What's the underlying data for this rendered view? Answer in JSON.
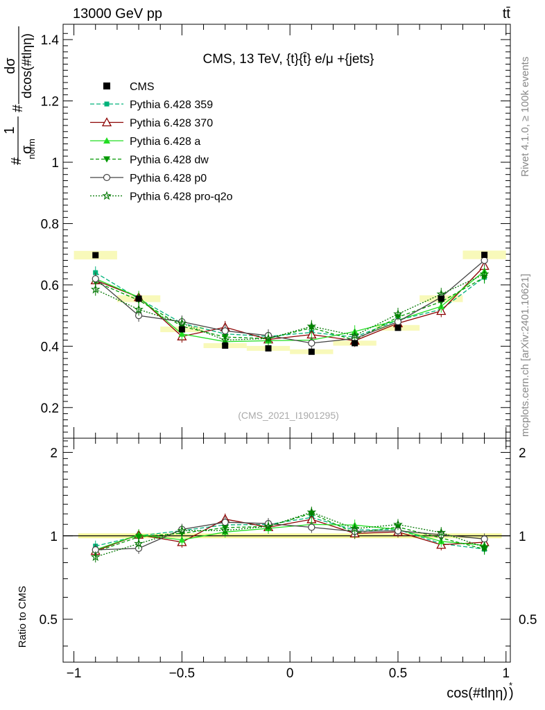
{
  "header": {
    "left": "13000 GeV pp",
    "right": "tt̄"
  },
  "side_labels": {
    "rivet": "Rivet 4.1.0, ≥ 100k events",
    "source": "mcplots.cern.ch [arXiv:2401.10621]"
  },
  "chart_data": [
    {
      "type": "line",
      "name": "main",
      "title": "CMS, 13 TeV, {t}{t̄} e/μ +{jets}",
      "watermark": "(CMS_2021_I1901295)",
      "ylabel": {
        "prefix": "#",
        "frac1_num": "1",
        "frac1_den": "σ",
        "frac1_den_sub": "norm",
        "frac2_prefix": "#",
        "frac2_num": "dσ",
        "frac2_den": "dcos(#tlηη)"
      },
      "xlim": [
        -1.05,
        1.02
      ],
      "ylim": [
        0.1,
        1.45
      ],
      "y_ticks": [
        0.2,
        0.4,
        0.6,
        0.8,
        1.0,
        1.2,
        1.4
      ],
      "y_tick_labels": [
        "0.2",
        "0.4",
        "0.6",
        "0.8",
        "1",
        "1.2",
        "1.4"
      ],
      "x": [
        -0.9,
        -0.7,
        -0.5,
        -0.3,
        -0.1,
        0.1,
        0.3,
        0.5,
        0.7,
        0.9
      ],
      "data": {
        "name": "CMS",
        "values": [
          0.697,
          0.555,
          0.455,
          0.402,
          0.393,
          0.382,
          0.41,
          0.46,
          0.555,
          0.698
        ]
      },
      "series": [
        {
          "name": "Pythia 6.428 359",
          "color": "#00b27a",
          "dash": "6,3",
          "marker": "square",
          "values": [
            0.64,
            0.555,
            0.475,
            0.44,
            0.432,
            0.445,
            0.43,
            0.485,
            0.52,
            0.625
          ]
        },
        {
          "name": "Pythia 6.428 370",
          "color": "#8b0000",
          "dash": "",
          "marker": "triangle-open",
          "values": [
            0.615,
            0.56,
            0.432,
            0.462,
            0.422,
            0.438,
            0.418,
            0.475,
            0.515,
            0.662
          ]
        },
        {
          "name": "Pythia 6.428 a",
          "color": "#22dd22",
          "dash": "",
          "marker": "triangle",
          "values": [
            0.62,
            0.56,
            0.44,
            0.415,
            0.418,
            0.42,
            0.448,
            0.485,
            0.53,
            0.645
          ]
        },
        {
          "name": "Pythia 6.428 dw",
          "color": "#009900",
          "dash": "5,3",
          "marker": "triangle-down",
          "values": [
            0.61,
            0.55,
            0.465,
            0.43,
            0.425,
            0.46,
            0.42,
            0.495,
            0.545,
            0.625
          ]
        },
        {
          "name": "Pythia 6.428 p0",
          "color": "#444444",
          "dash": "",
          "marker": "circle-open",
          "values": [
            0.62,
            0.5,
            0.48,
            0.45,
            0.435,
            0.41,
            0.425,
            0.48,
            0.56,
            0.68
          ]
        },
        {
          "name": "Pythia 6.428 pro-q2o",
          "color": "#007700",
          "dash": "2,2",
          "marker": "star",
          "values": [
            0.585,
            0.52,
            0.475,
            0.42,
            0.425,
            0.465,
            0.435,
            0.505,
            0.57,
            0.635
          ]
        }
      ]
    },
    {
      "type": "line",
      "name": "ratio",
      "ylabel": "Ratio to CMS",
      "xlabel": "cos(#tlηη)",
      "xlabel_sup": "*",
      "xlim": [
        -1.05,
        1.02
      ],
      "ylim": [
        0.35,
        2.25
      ],
      "y_ticks": [
        0.5,
        1.0,
        2.0
      ],
      "y_tick_labels": [
        "0.5",
        "1",
        "2"
      ],
      "x_ticks": [
        -1.0,
        -0.5,
        0.0,
        0.5,
        1.0
      ],
      "x_tick_labels": [
        "−1",
        "−0.5",
        "0",
        "0.5",
        "1"
      ],
      "band_half_width": 0.02,
      "x": [
        -0.9,
        -0.7,
        -0.5,
        -0.3,
        -0.1,
        0.1,
        0.3,
        0.5,
        0.7,
        0.9
      ],
      "series": [
        {
          "name": "Pythia 6.428 359",
          "color": "#00b27a",
          "dash": "6,3",
          "marker": "square",
          "values": [
            0.918,
            1.0,
            1.044,
            1.095,
            1.099,
            1.165,
            1.049,
            1.054,
            0.937,
            0.895
          ]
        },
        {
          "name": "Pythia 6.428 370",
          "color": "#8b0000",
          "dash": "",
          "marker": "triangle-open",
          "values": [
            0.882,
            1.009,
            0.949,
            1.149,
            1.074,
            1.147,
            1.02,
            1.033,
            0.928,
            0.948
          ]
        },
        {
          "name": "Pythia 6.428 a",
          "color": "#22dd22",
          "dash": "",
          "marker": "triangle",
          "values": [
            0.89,
            1.009,
            0.967,
            1.032,
            1.064,
            1.099,
            1.093,
            1.054,
            0.955,
            0.924
          ]
        },
        {
          "name": "Pythia 6.428 dw",
          "color": "#009900",
          "dash": "5,3",
          "marker": "triangle-down",
          "values": [
            0.875,
            0.991,
            1.022,
            1.07,
            1.081,
            1.204,
            1.024,
            1.076,
            0.982,
            0.895
          ]
        },
        {
          "name": "Pythia 6.428 p0",
          "color": "#444444",
          "dash": "",
          "marker": "circle-open",
          "values": [
            0.89,
            0.901,
            1.055,
            1.119,
            1.107,
            1.073,
            1.037,
            1.043,
            1.009,
            0.974
          ]
        },
        {
          "name": "Pythia 6.428 pro-q2o",
          "color": "#007700",
          "dash": "2,2",
          "marker": "star",
          "values": [
            0.839,
            0.937,
            1.044,
            1.045,
            1.081,
            1.217,
            1.061,
            1.098,
            1.027,
            0.91
          ]
        }
      ]
    }
  ]
}
